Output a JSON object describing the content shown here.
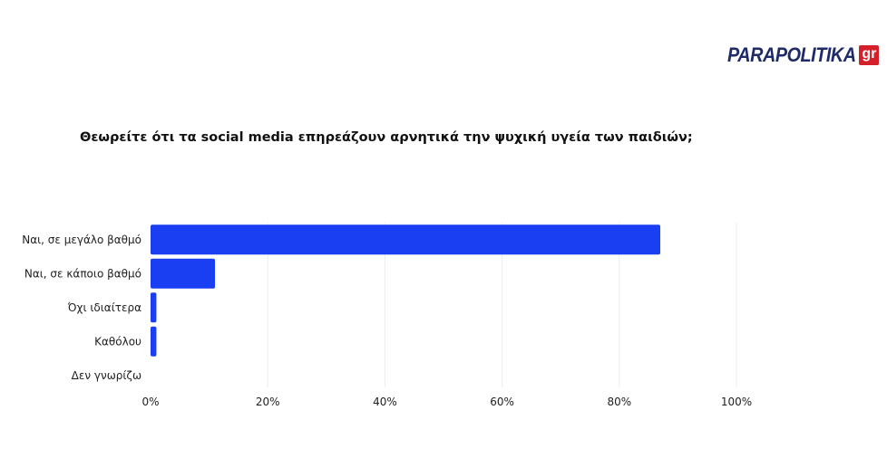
{
  "brand": {
    "name": "PARAPOLITIKA",
    "suffix": "gr",
    "color": "#1f2a68",
    "suffix_color": "#d4202a"
  },
  "colors": {
    "bar": "#1a3ff2",
    "grid": "#ececec",
    "text": "#222222"
  },
  "chart_data": {
    "type": "bar",
    "orientation": "horizontal",
    "title": "Θεωρείτε ότι τα social media επηρεάζουν αρνητικά την ψυχική υγεία των παιδιών;",
    "categories": [
      "Ναι, σε μεγάλο βαθμό",
      "Ναι, σε κάποιο βαθμό",
      "Όχι ιδιαίτερα",
      "Καθόλου",
      "Δεν γνωρίζω"
    ],
    "values": [
      87,
      11,
      1,
      1,
      0
    ],
    "unit": "%",
    "xlim": [
      0,
      100
    ],
    "xticks": [
      0,
      20,
      40,
      60,
      80,
      100
    ],
    "xtick_labels": [
      "0%",
      "20%",
      "40%",
      "60%",
      "80%",
      "100%"
    ],
    "grid": true,
    "legend": "none"
  }
}
